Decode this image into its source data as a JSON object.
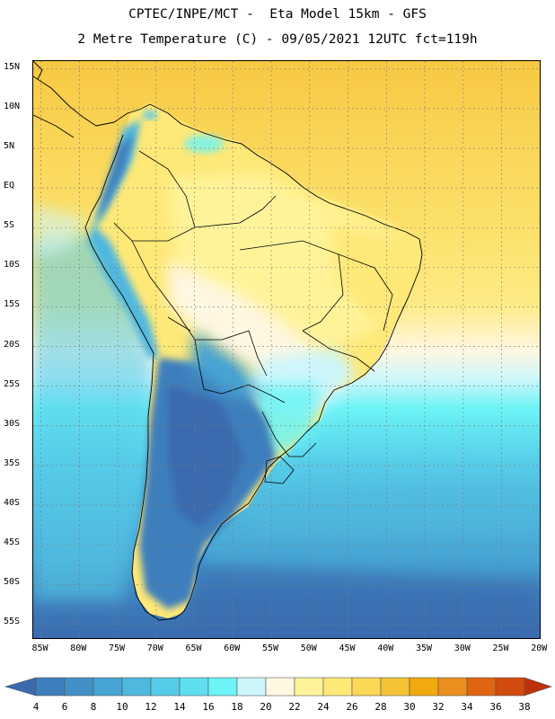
{
  "header": {
    "line1": "CPTEC/INPE/MCT -  Eta Model 15km - GFS",
    "line2": "2 Metre Temperature (C) - 09/05/2021 12UTC fct=119h"
  },
  "map": {
    "lat_range": [
      -57,
      16
    ],
    "lon_range": [
      -86,
      -19.8
    ],
    "lat_ticks": [
      "15N",
      "10N",
      "5N",
      "EQ",
      "5S",
      "10S",
      "15S",
      "20S",
      "25S",
      "30S",
      "35S",
      "40S",
      "45S",
      "50S",
      "55S"
    ],
    "lon_ticks": [
      "85W",
      "80W",
      "75W",
      "70W",
      "65W",
      "60W",
      "55W",
      "50W",
      "45W",
      "40W",
      "35W",
      "30W",
      "25W",
      "20W"
    ]
  },
  "colorbar": {
    "labels": [
      "4",
      "6",
      "8",
      "10",
      "12",
      "14",
      "16",
      "18",
      "20",
      "22",
      "24",
      "26",
      "28",
      "30",
      "32",
      "34",
      "36",
      "38"
    ],
    "colors": [
      "#3a6aae",
      "#3d7fbd",
      "#4190c6",
      "#47a3d3",
      "#4fb8de",
      "#56cbe8",
      "#5fdfee",
      "#6cf4f6",
      "#cdf6fb",
      "#fff7e2",
      "#fff39a",
      "#fee877",
      "#fcd857",
      "#f4c235",
      "#f2a90e",
      "#eb8f1f",
      "#e06512",
      "#d24a0e",
      "#bf3209"
    ]
  }
}
